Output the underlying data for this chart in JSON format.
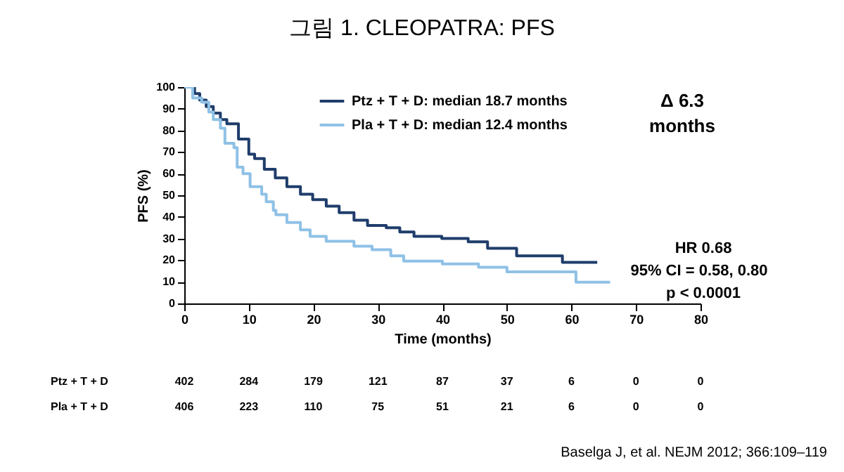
{
  "chart_data": {
    "type": "step",
    "title": "그림 1. CLEOPATRA: PFS",
    "xlabel": "Time (months)",
    "ylabel": "PFS (%)",
    "xlim": [
      0,
      80
    ],
    "xticks": [
      0,
      10,
      20,
      30,
      40,
      50,
      60,
      70,
      80
    ],
    "ylim": [
      0,
      100
    ],
    "yticks": [
      0,
      10,
      20,
      30,
      40,
      50,
      60,
      70,
      80,
      90,
      100
    ],
    "grid": false,
    "legend": "top",
    "series": [
      {
        "name": "Ptz + T + D: median 18.7 months",
        "color": "#1f3d6b",
        "x": [
          0,
          1.6,
          2.4,
          3.4,
          4.5,
          5.6,
          6.6,
          8.4,
          10,
          10.9,
          12.4,
          14.1,
          15.9,
          18,
          19.9,
          22,
          24,
          26.3,
          28.4,
          31.3,
          33.4,
          35.6,
          39.9,
          44,
          47,
          51.5,
          58.6,
          64
        ],
        "values": [
          100,
          97,
          94,
          91,
          88,
          85,
          83,
          76,
          69,
          67,
          62,
          58,
          54,
          50.5,
          48,
          45,
          42,
          38.5,
          36,
          35,
          33,
          31,
          30,
          28.5,
          25.5,
          22,
          19,
          19
        ]
      },
      {
        "name": "Pla + T + D: median 12.4 months",
        "color": "#8fc1e6",
        "x": [
          0,
          1.3,
          2.7,
          3.8,
          4.5,
          5.6,
          6.3,
          7.7,
          8.2,
          9.1,
          10.2,
          12,
          12.7,
          13.8,
          14.2,
          15.9,
          18,
          19.5,
          22,
          26.3,
          29.1,
          32,
          34,
          40,
          45.6,
          50,
          60.7,
          66
        ],
        "values": [
          100,
          95,
          93,
          88.5,
          85,
          81,
          74,
          72,
          63,
          60,
          54,
          50.5,
          47,
          43,
          41,
          37.4,
          34,
          31,
          28.7,
          26.5,
          24.8,
          22,
          19.6,
          18.3,
          16.7,
          14.6,
          9.8,
          9.8
        ]
      }
    ],
    "annotations": [
      "Δ 6.3",
      "months",
      "HR 0.68",
      "95% CI = 0.58, 0.80",
      "p < 0.0001",
      "Ptz + T + D",
      "402 284 179 121 87 37 6 0 0",
      "Pla + T + D",
      "406 223 110 75 51 21 6 0 0",
      "Baselga J, et al. NEJM 2012; 366:109–119"
    ]
  }
}
